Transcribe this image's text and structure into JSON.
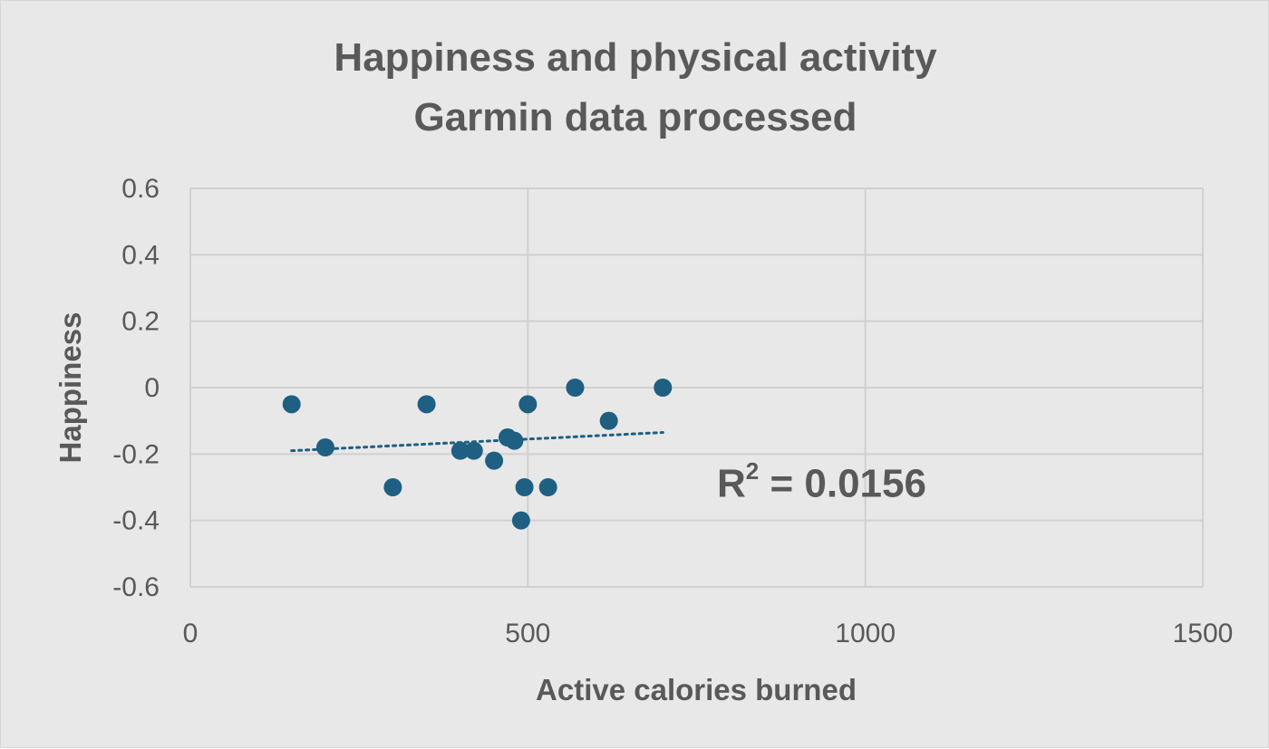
{
  "chart_data": {
    "type": "scatter",
    "title_lines": [
      "Happiness and physical activity",
      "Garmin data processed"
    ],
    "xlabel": "Active calories burned",
    "ylabel": "Happiness",
    "xlim": [
      0,
      1500
    ],
    "ylim": [
      -0.6,
      0.6
    ],
    "x_ticks": [
      0,
      500,
      1000,
      1500
    ],
    "y_ticks": [
      0.6,
      0.4,
      0.2,
      0,
      -0.2,
      -0.4,
      -0.6
    ],
    "x_tick_labels": [
      "0",
      "500",
      "1000",
      "1500"
    ],
    "y_tick_labels": [
      "0.6",
      "0.4",
      "0.2",
      "0",
      "-0.2",
      "-0.4",
      "-0.6"
    ],
    "grid": true,
    "series": [
      {
        "points": [
          {
            "x": 150,
            "y": -0.05
          },
          {
            "x": 200,
            "y": -0.18
          },
          {
            "x": 300,
            "y": -0.3
          },
          {
            "x": 350,
            "y": -0.05
          },
          {
            "x": 400,
            "y": -0.19
          },
          {
            "x": 420,
            "y": -0.19
          },
          {
            "x": 450,
            "y": -0.22
          },
          {
            "x": 470,
            "y": -0.15
          },
          {
            "x": 480,
            "y": -0.16
          },
          {
            "x": 490,
            "y": -0.4
          },
          {
            "x": 495,
            "y": -0.3
          },
          {
            "x": 500,
            "y": -0.05
          },
          {
            "x": 530,
            "y": -0.3
          },
          {
            "x": 570,
            "y": 0.0
          },
          {
            "x": 620,
            "y": -0.1
          },
          {
            "x": 700,
            "y": 0.0
          }
        ],
        "color": "#1f5f82"
      }
    ],
    "trendline": {
      "type": "linear",
      "style": "dotted",
      "x_range": [
        150,
        700
      ],
      "y_start": -0.19,
      "y_end": -0.135,
      "color": "#1f5f82"
    },
    "annotation": {
      "r2_prefix": "R",
      "r2_exp": "2",
      "r2_value": " = 0.0156"
    }
  },
  "colors": {
    "background": "#e8e8e8",
    "grid": "#d0d0d0",
    "text": "#595959",
    "marker": "#1f5f82"
  }
}
